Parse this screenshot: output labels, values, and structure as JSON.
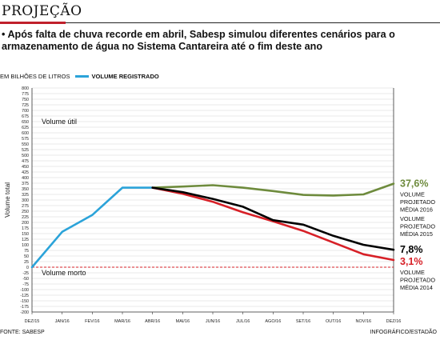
{
  "header": {
    "title": "PROJEÇÃO",
    "lede": "• Após falta de chuva recorde em abril, Sabesp simulou diferentes cenários para o armazenamento de água no Sistema Cantareira até o fim deste ano"
  },
  "legend": {
    "unit_label": "EM BILHÕES DE LITROS",
    "registered_label": "VOLUME REGISTRADO"
  },
  "footer": {
    "source": "FONTE: SABESP",
    "credit": "INFOGRÁFICO/ESTADÃO"
  },
  "chart_data": {
    "type": "line",
    "ylabel": "Volume total",
    "ylim": [
      -200,
      800
    ],
    "yticks": [
      -200,
      -175,
      -150,
      -125,
      -100,
      -75,
      -50,
      -25,
      0,
      25,
      50,
      75,
      100,
      125,
      150,
      175,
      200,
      225,
      250,
      275,
      300,
      325,
      350,
      375,
      400,
      425,
      450,
      475,
      500,
      525,
      550,
      575,
      600,
      625,
      650,
      675,
      700,
      725,
      750,
      775,
      800
    ],
    "ytick_labels": [
      "-200",
      "-175",
      "-150",
      "-125",
      "-100",
      "-75",
      "-50",
      "-25",
      "0",
      "25",
      "50",
      "75",
      "100",
      "125",
      "150",
      "175",
      "200",
      "225",
      "250",
      "275",
      "300",
      "325",
      "350",
      "375",
      "400",
      "425",
      "450",
      "475",
      "500",
      "525",
      "550",
      "575",
      "600",
      "625",
      "650",
      "675",
      "700",
      "725",
      "750",
      "775",
      "800"
    ],
    "x_labels": [
      "DEZ/15",
      "JAN/16",
      "FEV/16",
      "MAR/16",
      "ABR/16",
      "MAI/16",
      "JUN/16",
      "JUL/16",
      "AGO/16",
      "SET/16",
      "OUT/16",
      "NOV/16",
      "DEZ/16"
    ],
    "zones": [
      {
        "label": "Volume útil",
        "y": 650
      },
      {
        "label": "Volume morto",
        "y": -25
      }
    ],
    "series": [
      {
        "name": "VOLUME REGISTRADO",
        "color": "#2ba3d9",
        "x": [
          "DEZ/15",
          "JAN/16",
          "FEV/16",
          "MAR/16",
          "ABR/16"
        ],
        "values": [
          0,
          158,
          233,
          355,
          355
        ]
      },
      {
        "name": "VOLUME PROJETADO MÉDIA 2016",
        "color": "#6e8b3d",
        "end_label": "37,6%",
        "x": [
          "ABR/16",
          "MAI/16",
          "JUN/16",
          "JUL/16",
          "AGO/16",
          "SET/16",
          "OUT/16",
          "NOV/16",
          "DEZ/16"
        ],
        "values": [
          355,
          360,
          366,
          355,
          340,
          323,
          320,
          325,
          373
        ]
      },
      {
        "name": "VOLUME PROJETADO MÉDIA 2015",
        "color": "#000000",
        "end_label": "7,8%",
        "x": [
          "ABR/16",
          "MAI/16",
          "JUN/16",
          "JUL/16",
          "AGO/16",
          "SET/16",
          "OUT/16",
          "NOV/16",
          "DEZ/16"
        ],
        "values": [
          355,
          335,
          305,
          270,
          210,
          190,
          140,
          100,
          78
        ]
      },
      {
        "name": "VOLUME PROJETADO MÉDIA 2014",
        "color": "#d72027",
        "end_label": "3,1%",
        "x": [
          "ABR/16",
          "MAI/16",
          "JUN/16",
          "JUL/16",
          "AGO/16",
          "SET/16",
          "OUT/16",
          "NOV/16",
          "DEZ/16"
        ],
        "values": [
          355,
          328,
          292,
          245,
          205,
          162,
          110,
          58,
          32
        ]
      }
    ]
  }
}
